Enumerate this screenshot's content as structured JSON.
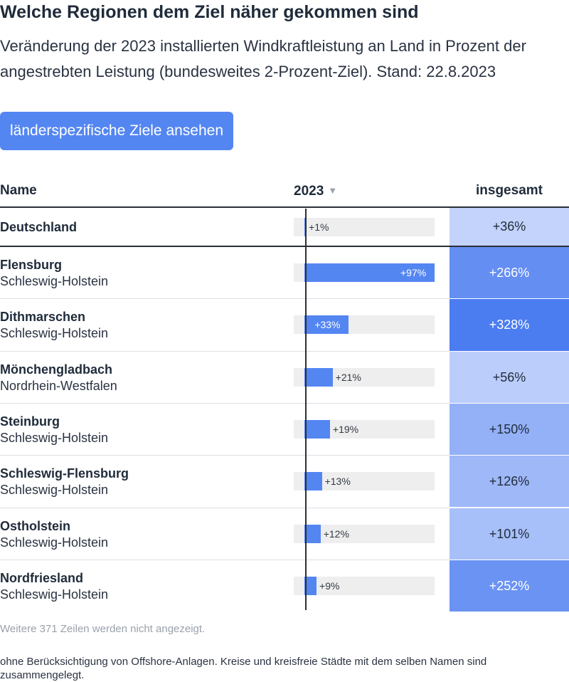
{
  "title": "Welche Regionen dem Ziel näher gekommen sind",
  "subtitle": "Veränderung der 2023 installierten Windkraftleistung an Land in Prozent der angestrebten Leistung (bundesweites 2-Prozent-Ziel). Stand: 22.8.2023",
  "button_label": "länderspezifische Ziele ansehen",
  "columns": {
    "name": "Name",
    "year": "2023",
    "sort_indicator": "▼",
    "total": "insgesamt"
  },
  "footer": {
    "more_rows": "Weitere 371 Zeilen werden nicht angezeigt.",
    "note": "ohne Berücksichtigung von Offshore-Anlagen. Kreise und kreisfreie Städte mit dem selben Namen sind zusammengelegt."
  },
  "colors": {
    "bar": "#5486f2",
    "track": "#eeeeee",
    "total_low": "#c3d3fb",
    "total_high": "#4b7cf0"
  },
  "chart_data": {
    "type": "table",
    "xlim": [
      -8,
      97
    ],
    "rows": [
      {
        "name": "Deutschland",
        "region": "",
        "value_2023": 1,
        "label_2023": "+1%",
        "total": 36,
        "label_total": "+36%"
      },
      {
        "name": "Flensburg",
        "region": "Schleswig-Holstein",
        "value_2023": 97,
        "label_2023": "+97%",
        "total": 266,
        "label_total": "+266%"
      },
      {
        "name": "Dithmarschen",
        "region": "Schleswig-Holstein",
        "value_2023": 33,
        "label_2023": "+33%",
        "total": 328,
        "label_total": "+328%"
      },
      {
        "name": "Mönchengladbach",
        "region": "Nordrhein-Westfalen",
        "value_2023": 21,
        "label_2023": "+21%",
        "total": 56,
        "label_total": "+56%"
      },
      {
        "name": "Steinburg",
        "region": "Schleswig-Holstein",
        "value_2023": 19,
        "label_2023": "+19%",
        "total": 150,
        "label_total": "+150%"
      },
      {
        "name": "Schleswig-Flensburg",
        "region": "Schleswig-Holstein",
        "value_2023": 13,
        "label_2023": "+13%",
        "total": 126,
        "label_total": "+126%"
      },
      {
        "name": "Ostholstein",
        "region": "Schleswig-Holstein",
        "value_2023": 12,
        "label_2023": "+12%",
        "total": 101,
        "label_total": "+101%"
      },
      {
        "name": "Nordfriesland",
        "region": "Schleswig-Holstein",
        "value_2023": 9,
        "label_2023": "+9%",
        "total": 252,
        "label_total": "+252%"
      }
    ]
  }
}
